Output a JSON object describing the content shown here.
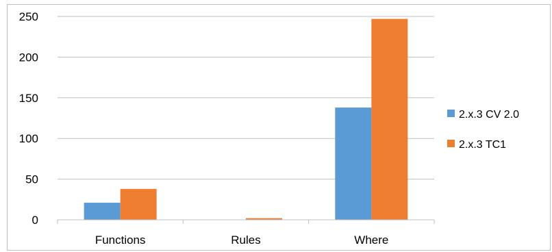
{
  "chart_data": {
    "type": "bar",
    "categories": [
      "Functions",
      "Rules",
      "Where"
    ],
    "series": [
      {
        "name": "2.x.3 CV 2.0",
        "values": [
          21,
          0,
          138
        ],
        "color": "#5b9bd5"
      },
      {
        "name": "2.x.3 TC1",
        "values": [
          38,
          2,
          247
        ],
        "color": "#ed7d31"
      }
    ],
    "yticks": [
      0,
      50,
      100,
      150,
      200,
      250
    ],
    "ylim": [
      0,
      250
    ],
    "grid": true,
    "legend_position": "right"
  }
}
